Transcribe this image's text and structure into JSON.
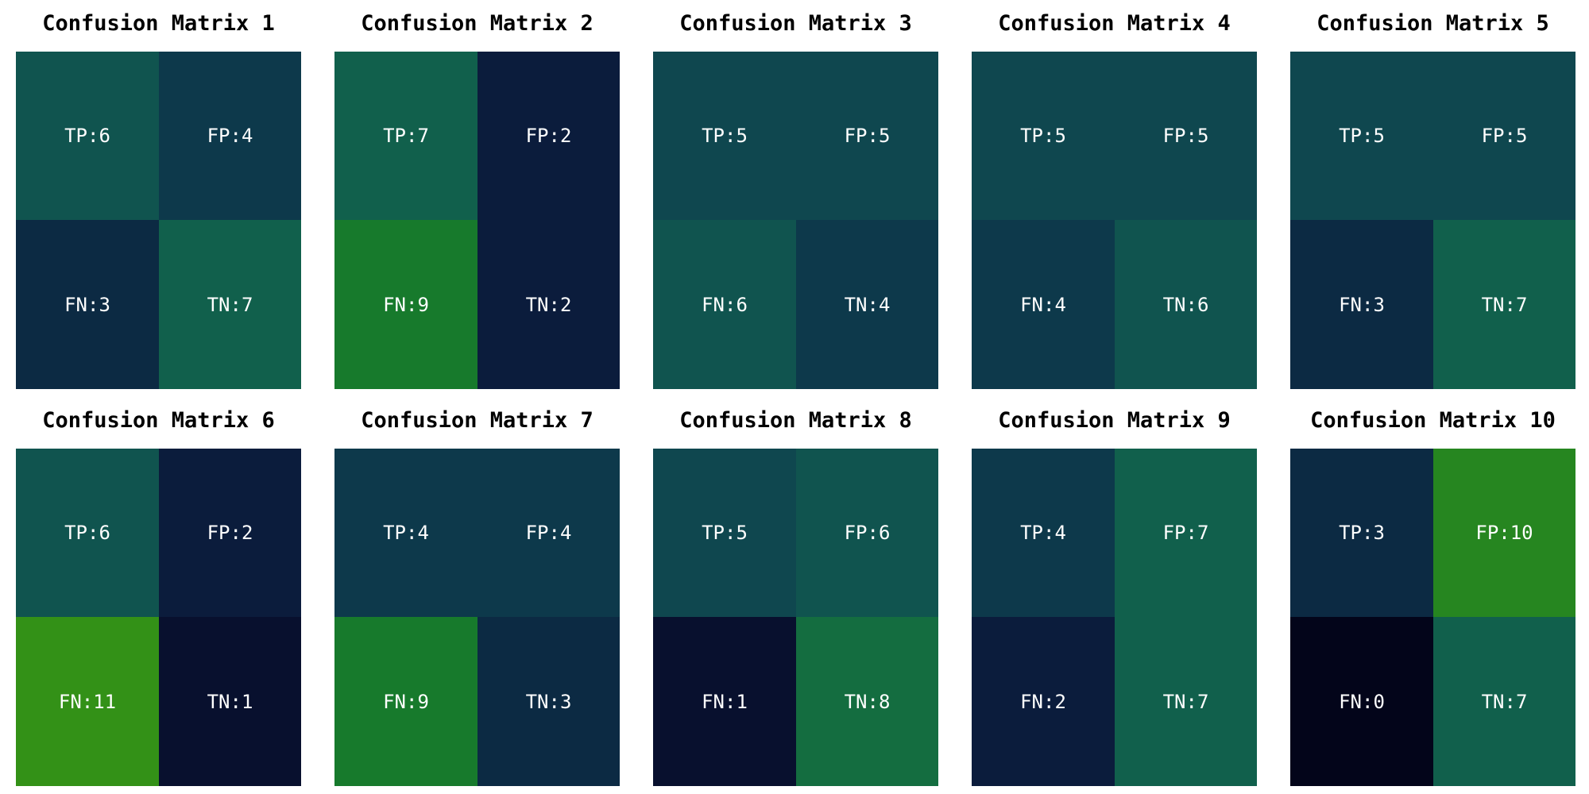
{
  "chart_data": [
    {
      "type": "heatmap",
      "title": "Confusion Matrix 1",
      "cells": [
        {
          "label": "TP",
          "value": 6
        },
        {
          "label": "FP",
          "value": 4
        },
        {
          "label": "FN",
          "value": 3
        },
        {
          "label": "TN",
          "value": 7
        }
      ]
    },
    {
      "type": "heatmap",
      "title": "Confusion Matrix 2",
      "cells": [
        {
          "label": "TP",
          "value": 7
        },
        {
          "label": "FP",
          "value": 2
        },
        {
          "label": "FN",
          "value": 9
        },
        {
          "label": "TN",
          "value": 2
        }
      ]
    },
    {
      "type": "heatmap",
      "title": "Confusion Matrix 3",
      "cells": [
        {
          "label": "TP",
          "value": 5
        },
        {
          "label": "FP",
          "value": 5
        },
        {
          "label": "FN",
          "value": 6
        },
        {
          "label": "TN",
          "value": 4
        }
      ]
    },
    {
      "type": "heatmap",
      "title": "Confusion Matrix 4",
      "cells": [
        {
          "label": "TP",
          "value": 5
        },
        {
          "label": "FP",
          "value": 5
        },
        {
          "label": "FN",
          "value": 4
        },
        {
          "label": "TN",
          "value": 6
        }
      ]
    },
    {
      "type": "heatmap",
      "title": "Confusion Matrix 5",
      "cells": [
        {
          "label": "TP",
          "value": 5
        },
        {
          "label": "FP",
          "value": 5
        },
        {
          "label": "FN",
          "value": 3
        },
        {
          "label": "TN",
          "value": 7
        }
      ]
    },
    {
      "type": "heatmap",
      "title": "Confusion Matrix 6",
      "cells": [
        {
          "label": "TP",
          "value": 6
        },
        {
          "label": "FP",
          "value": 2
        },
        {
          "label": "FN",
          "value": 11
        },
        {
          "label": "TN",
          "value": 1
        }
      ]
    },
    {
      "type": "heatmap",
      "title": "Confusion Matrix 7",
      "cells": [
        {
          "label": "TP",
          "value": 4
        },
        {
          "label": "FP",
          "value": 4
        },
        {
          "label": "FN",
          "value": 9
        },
        {
          "label": "TN",
          "value": 3
        }
      ]
    },
    {
      "type": "heatmap",
      "title": "Confusion Matrix 8",
      "cells": [
        {
          "label": "TP",
          "value": 5
        },
        {
          "label": "FP",
          "value": 6
        },
        {
          "label": "FN",
          "value": 1
        },
        {
          "label": "TN",
          "value": 8
        }
      ]
    },
    {
      "type": "heatmap",
      "title": "Confusion Matrix 9",
      "cells": [
        {
          "label": "TP",
          "value": 4
        },
        {
          "label": "FP",
          "value": 7
        },
        {
          "label": "FN",
          "value": 2
        },
        {
          "label": "TN",
          "value": 7
        }
      ]
    },
    {
      "type": "heatmap",
      "title": "Confusion Matrix 10",
      "cells": [
        {
          "label": "TP",
          "value": 3
        },
        {
          "label": "FP",
          "value": 10
        },
        {
          "label": "FN",
          "value": 0
        },
        {
          "label": "TN",
          "value": 7
        }
      ]
    }
  ],
  "colormap": [
    "#03051a",
    "#0b1538",
    "#0c2a43",
    "#0e404f",
    "#10544f",
    "#12664a",
    "#177a2c",
    "#2d8c1a",
    "#3f9a12"
  ],
  "colormap_range": [
    0,
    12
  ]
}
